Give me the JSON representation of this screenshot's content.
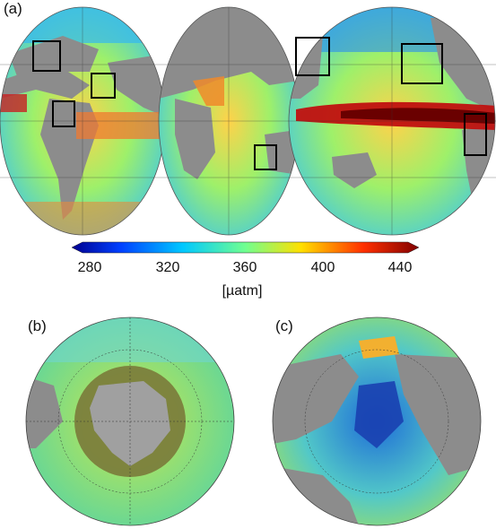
{
  "panels": {
    "a": "(a)",
    "b": "(b)",
    "c": "(c)"
  },
  "colorbar": {
    "ticks": [
      "280",
      "320",
      "360",
      "400",
      "440"
    ],
    "unit": "[µatm]",
    "min": 280,
    "max": 440,
    "colormap": [
      "#00008f",
      "#0060ff",
      "#00d8ff",
      "#80ff80",
      "#ffd800",
      "#ff4000",
      "#800000"
    ]
  },
  "colors": {
    "land": "#8c8c8c",
    "background_ocean": "#58d6b0",
    "graticule": "#333333",
    "region_box": "#000000"
  }
}
